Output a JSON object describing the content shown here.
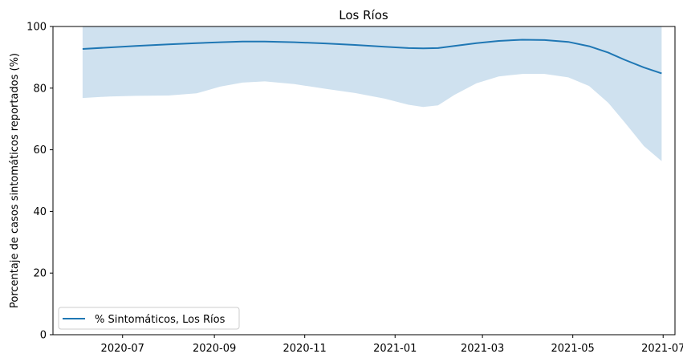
{
  "chart_data": {
    "type": "line",
    "title": "Los Ríos",
    "xlabel": "",
    "ylabel": "Porcentaje de casos sintomáticos reportados (%)",
    "xlim": [
      "2020-05-15",
      "2021-07-09"
    ],
    "ylim": [
      0,
      100
    ],
    "grid": false,
    "legend_position": "lower-left",
    "x_ticks": [
      {
        "date": "2020-07-01",
        "label": "2020-07"
      },
      {
        "date": "2020-09-01",
        "label": "2020-09"
      },
      {
        "date": "2020-11-01",
        "label": "2020-11"
      },
      {
        "date": "2021-01-01",
        "label": "2021-01"
      },
      {
        "date": "2021-03-01",
        "label": "2021-03"
      },
      {
        "date": "2021-05-01",
        "label": "2021-05"
      },
      {
        "date": "2021-07-01",
        "label": "2021-07"
      }
    ],
    "y_ticks": [
      0,
      20,
      40,
      60,
      80,
      100
    ],
    "series": [
      {
        "name": "% Sintomáticos, Los Ríos",
        "color": "#1f77b4",
        "band_color": "#cfe1ef",
        "points": [
          {
            "x": "2020-06-04",
            "y": 92.7,
            "lower": 76.8,
            "upper": 100
          },
          {
            "x": "2020-06-22",
            "y": 93.2,
            "lower": 77.3,
            "upper": 100
          },
          {
            "x": "2020-07-10",
            "y": 93.7,
            "lower": 77.5,
            "upper": 100
          },
          {
            "x": "2020-08-01",
            "y": 94.2,
            "lower": 77.6,
            "upper": 100
          },
          {
            "x": "2020-08-20",
            "y": 94.6,
            "lower": 78.3,
            "upper": 100
          },
          {
            "x": "2020-09-05",
            "y": 94.9,
            "lower": 80.5,
            "upper": 100
          },
          {
            "x": "2020-09-20",
            "y": 95.1,
            "lower": 81.8,
            "upper": 100
          },
          {
            "x": "2020-10-05",
            "y": 95.1,
            "lower": 82.2,
            "upper": 100
          },
          {
            "x": "2020-10-25",
            "y": 94.9,
            "lower": 81.3,
            "upper": 100
          },
          {
            "x": "2020-11-15",
            "y": 94.5,
            "lower": 79.8,
            "upper": 100
          },
          {
            "x": "2020-12-05",
            "y": 94.0,
            "lower": 78.4,
            "upper": 100
          },
          {
            "x": "2020-12-25",
            "y": 93.4,
            "lower": 76.6,
            "upper": 100
          },
          {
            "x": "2021-01-10",
            "y": 93.0,
            "lower": 74.6,
            "upper": 100
          },
          {
            "x": "2021-01-20",
            "y": 92.9,
            "lower": 73.9,
            "upper": 100
          },
          {
            "x": "2021-01-30",
            "y": 93.0,
            "lower": 74.4,
            "upper": 100
          },
          {
            "x": "2021-02-10",
            "y": 93.7,
            "lower": 77.8,
            "upper": 100
          },
          {
            "x": "2021-02-25",
            "y": 94.6,
            "lower": 81.6,
            "upper": 100
          },
          {
            "x": "2021-03-12",
            "y": 95.3,
            "lower": 83.8,
            "upper": 100
          },
          {
            "x": "2021-03-28",
            "y": 95.7,
            "lower": 84.6,
            "upper": 100
          },
          {
            "x": "2021-04-12",
            "y": 95.6,
            "lower": 84.6,
            "upper": 100
          },
          {
            "x": "2021-04-28",
            "y": 95.0,
            "lower": 83.5,
            "upper": 100
          },
          {
            "x": "2021-05-12",
            "y": 93.6,
            "lower": 80.7,
            "upper": 100
          },
          {
            "x": "2021-05-25",
            "y": 91.5,
            "lower": 75.2,
            "upper": 100
          },
          {
            "x": "2021-06-05",
            "y": 89.2,
            "lower": 68.9,
            "upper": 100
          },
          {
            "x": "2021-06-18",
            "y": 86.7,
            "lower": 61.2,
            "upper": 100
          },
          {
            "x": "2021-06-30",
            "y": 84.8,
            "lower": 56.3,
            "upper": 100
          }
        ]
      }
    ]
  }
}
